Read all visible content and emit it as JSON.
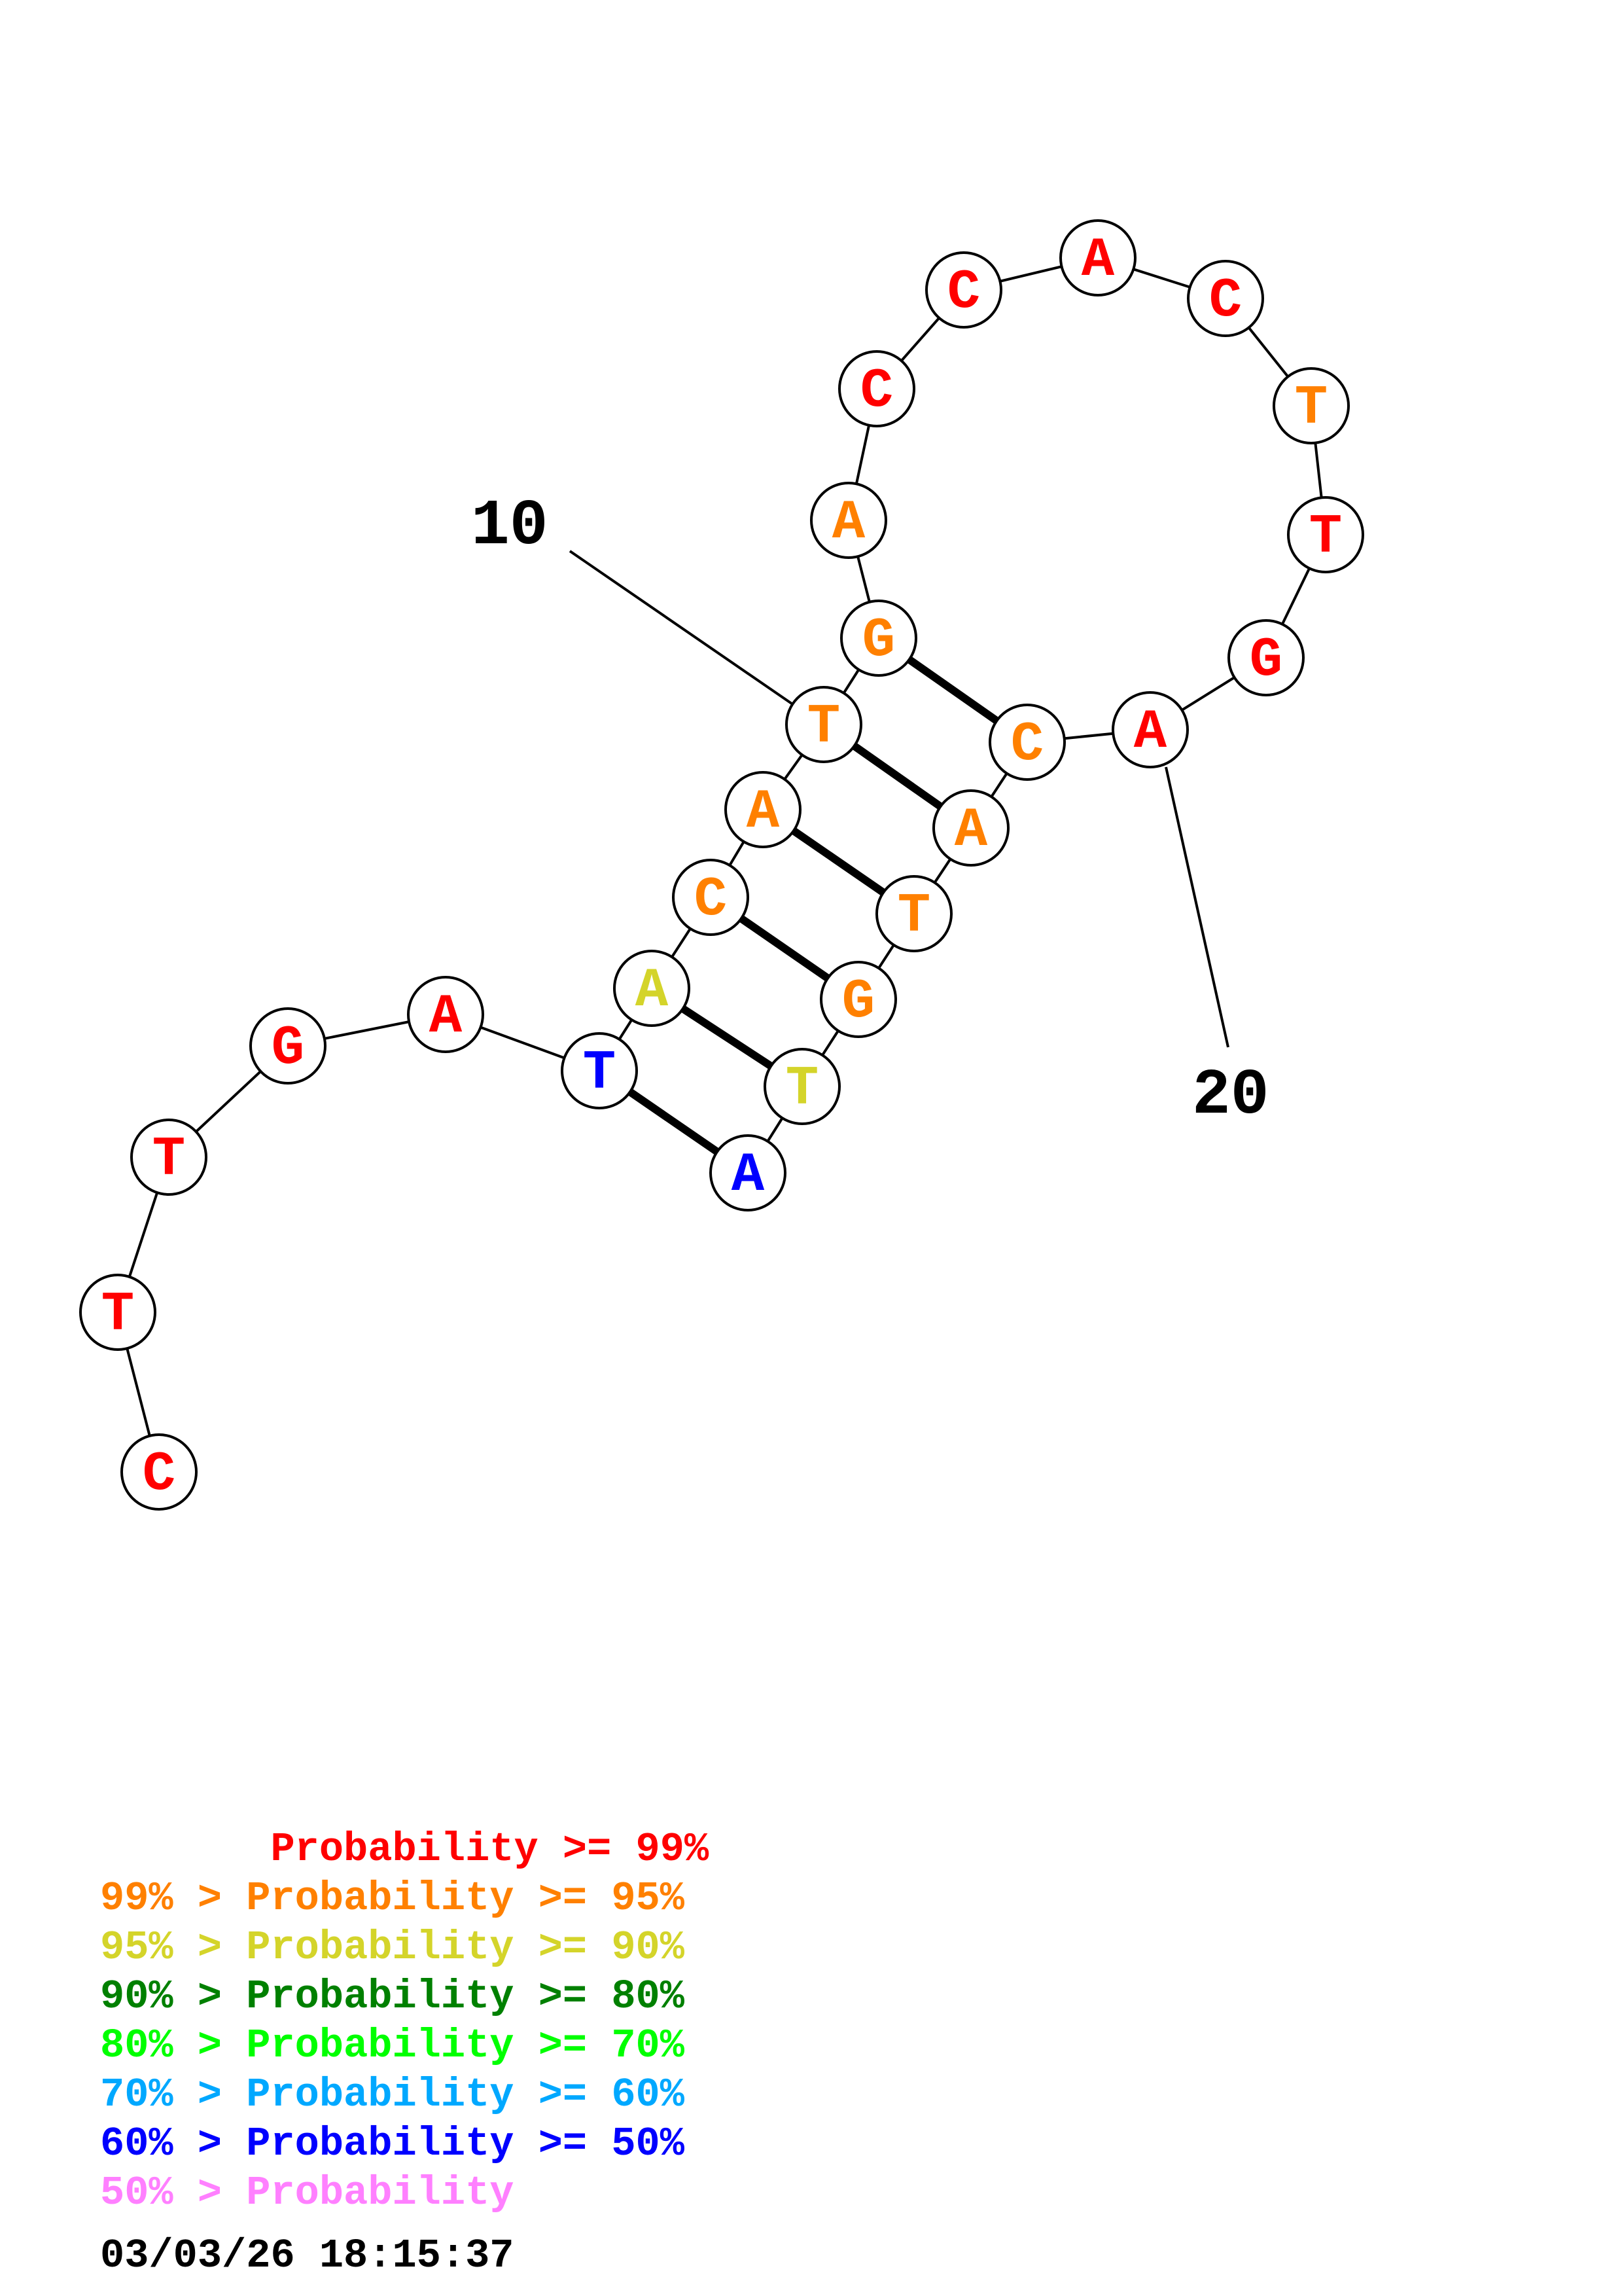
{
  "colors": {
    "p99": "#ff0000",
    "p95": "#ff8000",
    "p90": "#d4d42a",
    "p80": "#008000",
    "p70": "#00ff00",
    "p60": "#00a8ff",
    "p50": "#0000ff",
    "below50": "#ff80ff"
  },
  "nucleotides": [
    {
      "n": 1,
      "base": "C",
      "color": "p99"
    },
    {
      "n": 2,
      "base": "T",
      "color": "p99"
    },
    {
      "n": 3,
      "base": "T",
      "color": "p99"
    },
    {
      "n": 4,
      "base": "G",
      "color": "p99"
    },
    {
      "n": 5,
      "base": "A",
      "color": "p99"
    },
    {
      "n": 6,
      "base": "T",
      "color": "p50"
    },
    {
      "n": 7,
      "base": "A",
      "color": "p90"
    },
    {
      "n": 8,
      "base": "C",
      "color": "p95"
    },
    {
      "n": 9,
      "base": "A",
      "color": "p95"
    },
    {
      "n": 10,
      "base": "T",
      "color": "p95"
    },
    {
      "n": 11,
      "base": "G",
      "color": "p95"
    },
    {
      "n": 12,
      "base": "A",
      "color": "p95"
    },
    {
      "n": 13,
      "base": "C",
      "color": "p99"
    },
    {
      "n": 14,
      "base": "C",
      "color": "p99"
    },
    {
      "n": 15,
      "base": "A",
      "color": "p99"
    },
    {
      "n": 16,
      "base": "C",
      "color": "p99"
    },
    {
      "n": 17,
      "base": "T",
      "color": "p95"
    },
    {
      "n": 18,
      "base": "T",
      "color": "p99"
    },
    {
      "n": 19,
      "base": "G",
      "color": "p99"
    },
    {
      "n": 20,
      "base": "A",
      "color": "p99"
    },
    {
      "n": 21,
      "base": "C",
      "color": "p95"
    },
    {
      "n": 22,
      "base": "A",
      "color": "p95"
    },
    {
      "n": 23,
      "base": "T",
      "color": "p95"
    },
    {
      "n": 24,
      "base": "G",
      "color": "p95"
    },
    {
      "n": 25,
      "base": "T",
      "color": "p90"
    },
    {
      "n": 26,
      "base": "A",
      "color": "p50"
    }
  ],
  "base_pairs": [
    [
      6,
      26
    ],
    [
      7,
      25
    ],
    [
      8,
      24
    ],
    [
      9,
      23
    ],
    [
      10,
      22
    ],
    [
      11,
      21
    ]
  ],
  "position_labels": [
    {
      "text": "10",
      "n": 10
    },
    {
      "text": "20",
      "n": 20
    }
  ],
  "legend": [
    {
      "text": "       Probability >= 99%",
      "color": "p99"
    },
    {
      "text": "99% > Probability >= 95%",
      "color": "p95"
    },
    {
      "text": "95% > Probability >= 90%",
      "color": "p90"
    },
    {
      "text": "90% > Probability >= 80%",
      "color": "p80"
    },
    {
      "text": "80% > Probability >= 70%",
      "color": "p70"
    },
    {
      "text": "70% > Probability >= 60%",
      "color": "p60"
    },
    {
      "text": "60% > Probability >= 50%",
      "color": "p50"
    },
    {
      "text": "50% > Probability",
      "color": "below50"
    }
  ],
  "timestamp": "03/03/26 18:15:37"
}
